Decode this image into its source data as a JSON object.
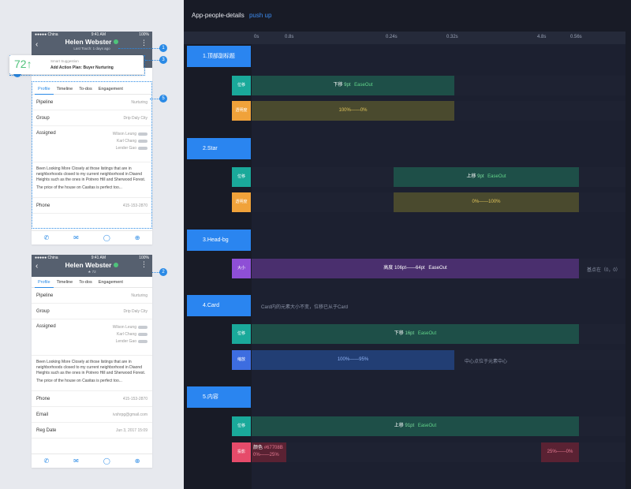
{
  "colors": {
    "accent": "#2a85f0",
    "teal": "#1aa99a",
    "orange": "#f0a23a",
    "purple": "#8e4fd6",
    "blue": "#3d6de0",
    "pink": "#e64b6a",
    "green_bar": "#1e4f48",
    "olive_bar": "#4a4a2e",
    "purple_bar": "#4a2f6e",
    "blue_bar": "#223e74",
    "red_bar": "#5a2233"
  },
  "phone1": {
    "carrier": "●●●●● China",
    "time": "9:41 AM",
    "battery": "100%",
    "name": "Helen Webster",
    "badge": "6",
    "last_touch": "Last Touch: 1 days ago",
    "suggestion": {
      "score": "72↑",
      "title": "Smart Suggestion",
      "text": "Add Action Plan: Buyer Nurturing"
    },
    "tabs": [
      "Profile",
      "Timeline",
      "To-dos ",
      "Engagement"
    ],
    "pipeline_label": "Pipeline",
    "pipeline_value": "Nurturing",
    "group_label": "Group",
    "group_value": "Drip Daly City",
    "assigned_label": "Assigned",
    "assigned": [
      "Wilson Leung",
      "Karl Chang",
      "Lender Gao"
    ],
    "note1": "Been Looking More Closely at those listings that are in neighborhoods closed to my current neighborhood in Diaond Heights such as the ones in Potrero Hill and Sherwood Forest.",
    "note2": "The price of the house on Casitas is perfect too...",
    "phone_label": "Phone",
    "phone_value": "415-153-2870"
  },
  "phone2": {
    "carrier": "●●●●● China",
    "time": "9:41 AM",
    "battery": "100%",
    "name": "Helen Webster",
    "badge": "6",
    "rating": "★ 72",
    "tabs": [
      "Profile",
      "Timeline",
      "To-dos ",
      "Engagement"
    ],
    "pipeline_label": "Pipeline",
    "pipeline_value": "Nurturing",
    "group_label": "Group",
    "group_value": "Drip Daly City",
    "assigned_label": "Assigned",
    "assigned": [
      "Wilson Leung",
      "Karl Chang",
      "Lender Gao"
    ],
    "note1": "Been Looking More Closely at those listings that are in neighborhoods closed to my current neighborhood in Diaond Heights such as the ones in Potrero Hill and Sherwood Forest.",
    "note2": "The price of the house on Casitas is perfect too...",
    "phone_label": "Phone",
    "phone_value": "415-153-2870",
    "email_label": "Email",
    "email_value": "ivshrpg@gmail.com",
    "reg_label": "Reg Date",
    "reg_value": "Jun 3, 2017 15:09"
  },
  "markers": [
    "1",
    "2",
    "3",
    "4",
    "5"
  ],
  "timeline": {
    "title": "App-people-details",
    "subtitle": "push up",
    "ticks": [
      "0s",
      "0.8s",
      "0.24s",
      "0.32s",
      "4.8s",
      "0.56s"
    ],
    "sections": [
      {
        "label": "1.顶部副标题"
      },
      {
        "label": "2.Star"
      },
      {
        "label": "3.Head-bg"
      },
      {
        "label": "4.Card",
        "note": "Card内的元素大小不变，位移已从于Card"
      },
      {
        "label": "5.内容"
      }
    ],
    "tracks": [
      {
        "chip": "位移",
        "text": "下移",
        "num": "9pt",
        "ease": "EaseOut"
      },
      {
        "chip": "透明度",
        "text": "100%——0%"
      },
      {
        "chip": "位移",
        "text": "上移",
        "num": "9pt",
        "ease": "EaseOut"
      },
      {
        "chip": "透明度",
        "text": "0%——100%"
      },
      {
        "chip": "大小",
        "text": "高度",
        "num": "106pt——64pt",
        "ease": "EaseOut",
        "note": "基点在（0，0）"
      },
      {
        "chip": "位移",
        "text": "下移",
        "num": "16pt",
        "ease": "EaseOut"
      },
      {
        "chip": "缩放",
        "text": "100%——95%",
        "note": "中心点位于元素中心"
      },
      {
        "chip": "位移",
        "text": "上移",
        "num": "91pt",
        "ease": "EaseOut"
      },
      {
        "chip": "投影",
        "text": "颜色",
        "num": "#67708B",
        "sub": "0%——25%",
        "text2": "25%——0%"
      }
    ]
  }
}
